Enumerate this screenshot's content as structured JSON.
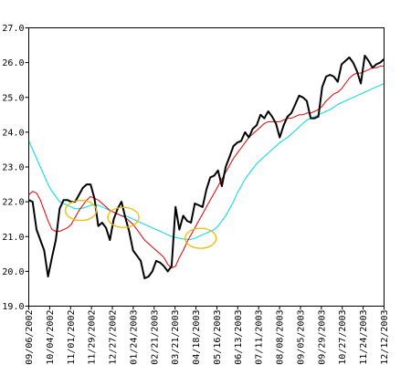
{
  "chart_data": {
    "type": "line",
    "x_labels": [
      "09/06/2002",
      "10/04/2002",
      "11/01/2002",
      "11/29/2002",
      "12/27/2002",
      "01/24/2003",
      "02/21/2003",
      "03/21/2003",
      "04/18/2003",
      "05/16/2003",
      "06/13/2003",
      "07/11/2003",
      "08/08/2003",
      "09/05/2003",
      "09/29/2003",
      "10/27/2003",
      "11/24/2003",
      "12/12/2003"
    ],
    "y_ticks": [
      "19.0",
      "20.0",
      "21.0",
      "22.0",
      "23.0",
      "24.0",
      "25.0",
      "26.0",
      "27.0"
    ],
    "ylim": [
      19.0,
      27.0
    ],
    "grid": false,
    "legend": "none",
    "series": [
      {
        "color": "#000000",
        "values": [
          22.05,
          22.0,
          21.2,
          20.9,
          20.6,
          19.85,
          20.4,
          20.9,
          21.8,
          22.05,
          22.05,
          22.0,
          22.0,
          22.2,
          22.4,
          22.5,
          22.5,
          22.1,
          21.3,
          21.4,
          21.25,
          20.9,
          21.5,
          21.8,
          22.0,
          21.55,
          21.15,
          20.6,
          20.45,
          20.3,
          19.8,
          19.85,
          20.0,
          20.3,
          20.25,
          20.15,
          20.0,
          20.15,
          21.85,
          21.2,
          21.6,
          21.45,
          21.4,
          21.95,
          21.9,
          21.85,
          22.35,
          22.7,
          22.75,
          22.9,
          22.45,
          23.0,
          23.3,
          23.6,
          23.7,
          23.75,
          24.0,
          23.85,
          24.1,
          24.2,
          24.5,
          24.4,
          24.6,
          24.45,
          24.25,
          23.85,
          24.2,
          24.45,
          24.55,
          24.8,
          25.05,
          25.0,
          24.9,
          24.4,
          24.4,
          24.45,
          25.3,
          25.6,
          25.65,
          25.6,
          25.45,
          25.95,
          26.05,
          26.15,
          26.0,
          25.75,
          25.4,
          26.2,
          26.05,
          25.85,
          25.95,
          26.0,
          26.1
        ]
      },
      {
        "color": "#e00000",
        "values": [
          22.2,
          22.3,
          22.25,
          22.05,
          21.75,
          21.45,
          21.2,
          21.15,
          21.15,
          21.2,
          21.25,
          21.35,
          21.55,
          21.75,
          21.9,
          22.05,
          22.15,
          22.1,
          22.05,
          21.95,
          21.85,
          21.75,
          21.7,
          21.65,
          21.6,
          21.55,
          21.45,
          21.35,
          21.2,
          21.05,
          20.9,
          20.8,
          20.7,
          20.6,
          20.5,
          20.4,
          20.2,
          20.1,
          20.15,
          20.4,
          20.6,
          20.85,
          21.05,
          21.25,
          21.45,
          21.65,
          21.85,
          22.05,
          22.25,
          22.45,
          22.65,
          22.85,
          23.05,
          23.25,
          23.4,
          23.55,
          23.7,
          23.85,
          23.95,
          24.05,
          24.15,
          24.25,
          24.3,
          24.3,
          24.3,
          24.3,
          24.35,
          24.4,
          24.4,
          24.45,
          24.5,
          24.5,
          24.55,
          24.55,
          24.6,
          24.65,
          24.75,
          24.9,
          25.0,
          25.1,
          25.15,
          25.25,
          25.4,
          25.55,
          25.65,
          25.7,
          25.7,
          25.75,
          25.8,
          25.85,
          25.85,
          25.9,
          25.9
        ]
      },
      {
        "color": "#00d8e0",
        "values": [
          23.75,
          23.5,
          23.25,
          23.0,
          22.75,
          22.5,
          22.3,
          22.15,
          22.0,
          21.95,
          21.9,
          21.85,
          21.8,
          21.8,
          21.82,
          21.85,
          21.9,
          21.9,
          21.9,
          21.85,
          21.8,
          21.75,
          21.7,
          21.65,
          21.6,
          21.6,
          21.55,
          21.5,
          21.45,
          21.4,
          21.35,
          21.3,
          21.25,
          21.2,
          21.15,
          21.1,
          21.05,
          21.0,
          20.98,
          20.95,
          20.93,
          20.92,
          20.92,
          20.95,
          21.0,
          21.05,
          21.1,
          21.15,
          21.2,
          21.3,
          21.45,
          21.6,
          21.8,
          22.0,
          22.25,
          22.45,
          22.65,
          22.8,
          22.95,
          23.1,
          23.2,
          23.3,
          23.4,
          23.5,
          23.6,
          23.7,
          23.78,
          23.85,
          23.95,
          24.05,
          24.15,
          24.25,
          24.35,
          24.4,
          24.45,
          24.5,
          24.55,
          24.6,
          24.65,
          24.72,
          24.8,
          24.85,
          24.9,
          24.95,
          25.0,
          25.05,
          25.1,
          25.15,
          25.2,
          25.25,
          25.3,
          25.35,
          25.4
        ]
      }
    ],
    "annotations": [
      {
        "shape": "ellipse",
        "color": "#f2b800",
        "x_index": 13.5,
        "y": 21.75
      },
      {
        "shape": "ellipse",
        "color": "#f2b800",
        "x_index": 24.5,
        "y": 21.55
      },
      {
        "shape": "ellipse",
        "color": "#f2b800",
        "x_index": 44.5,
        "y": 20.95
      }
    ]
  }
}
